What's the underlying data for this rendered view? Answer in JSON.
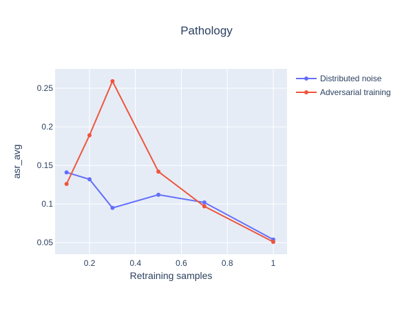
{
  "chart_data": {
    "type": "line",
    "title": "Pathology",
    "xlabel": "Retraining samples",
    "ylabel": "asr_avg",
    "xlim": [
      0.05,
      1.06
    ],
    "ylim": [
      0.035,
      0.275
    ],
    "xticks": [
      0.2,
      0.4,
      0.6,
      0.8,
      1
    ],
    "xtick_labels": [
      "0.2",
      "0.4",
      "0.6",
      "0.8",
      "1"
    ],
    "yticks": [
      0.05,
      0.1,
      0.15,
      0.2,
      0.25
    ],
    "ytick_labels": [
      "0.05",
      "0.1",
      "0.15",
      "0.2",
      "0.25"
    ],
    "grid": true,
    "legend_position": "top-right",
    "series": [
      {
        "name": "Distributed noise",
        "color": "#636efa",
        "x": [
          0.1,
          0.2,
          0.3,
          0.5,
          0.7,
          1
        ],
        "y": [
          0.141,
          0.132,
          0.095,
          0.112,
          0.102,
          0.054
        ]
      },
      {
        "name": "Adversarial training",
        "color": "#ef553b",
        "x": [
          0.1,
          0.2,
          0.3,
          0.5,
          0.7,
          1
        ],
        "y": [
          0.126,
          0.189,
          0.259,
          0.142,
          0.097,
          0.051
        ]
      }
    ]
  }
}
